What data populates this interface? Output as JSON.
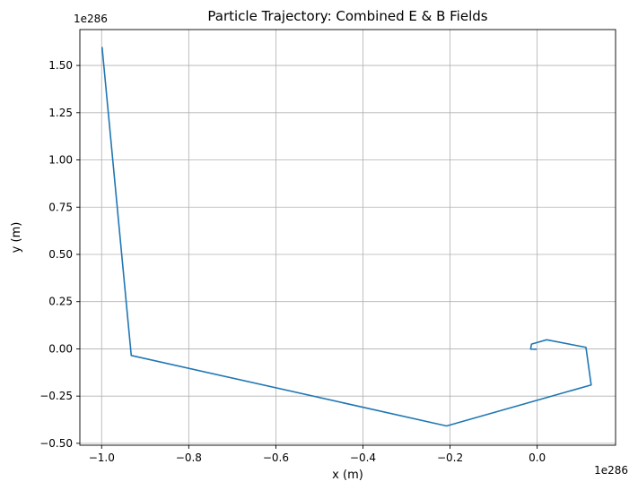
{
  "chart_data": {
    "type": "line",
    "title": "Particle Trajectory: Combined E & B Fields",
    "xlabel": "x (m)",
    "ylabel": "y (m)",
    "x_offset_label": "1e286",
    "y_offset_label": "1e286",
    "xlim": [
      -1.05,
      0.18
    ],
    "ylim": [
      -0.51,
      1.69
    ],
    "grid": true,
    "x_ticks": [
      -1.0,
      -0.8,
      -0.6,
      -0.4,
      -0.2,
      0.0
    ],
    "x_tick_labels": [
      "−1.0",
      "−0.8",
      "−0.6",
      "−0.4",
      "−0.2",
      "0.0"
    ],
    "y_ticks": [
      -0.5,
      -0.25,
      0.0,
      0.25,
      0.5,
      0.75,
      1.0,
      1.25,
      1.5
    ],
    "y_tick_labels": [
      "−0.50",
      "−0.25",
      "0.00",
      "0.25",
      "0.50",
      "0.75",
      "1.00",
      "1.25",
      "1.50"
    ],
    "series": [
      {
        "color": "#1f77b4",
        "x": [
          -0.001,
          -0.015,
          -0.013,
          0.022,
          0.112,
          0.124,
          -0.208,
          -0.932,
          -0.999
        ],
        "y": [
          -0.002,
          -0.001,
          0.025,
          0.048,
          0.008,
          -0.191,
          -0.408,
          -0.035,
          1.598
        ]
      }
    ]
  }
}
